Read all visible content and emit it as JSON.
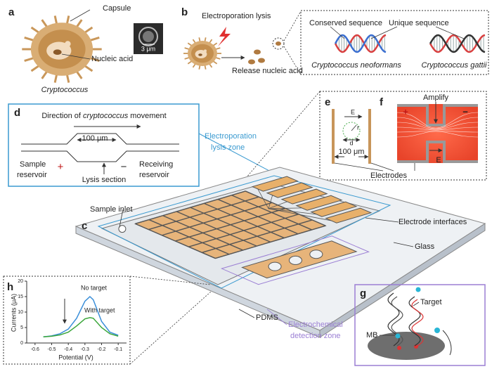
{
  "panels": {
    "a": {
      "label": "a",
      "capsule": "Capsule",
      "nucleic_acid": "Nucleic acid",
      "scale": "3 μm",
      "organism": "Cryptococcus"
    },
    "b": {
      "label": "b",
      "lysis": "Electroporation lysis",
      "release": "Release nucleic acid",
      "conserved": "Conserved sequence",
      "unique": "Unique sequence",
      "species_1": "Cryptococcus neoformans",
      "species_2": "Cryptococcus gattii"
    },
    "c": {
      "label": "c",
      "sample_inlet": "Sample inlet",
      "electrode_interfaces": "Electrode interfaces",
      "glass": "Glass",
      "pdms": "PDMS",
      "lysis_zone": [
        "Electroporation",
        "lysis zone"
      ],
      "detection_zone": [
        "Electrochemical",
        "detection zone"
      ]
    },
    "d": {
      "label": "d",
      "direction": [
        "Direction of ",
        "cryptococcus",
        " movement"
      ],
      "width": "100 μm",
      "plus": "+",
      "minus": "−",
      "sample": [
        "Sample",
        "reservoir"
      ],
      "receiving": [
        "Receiving",
        "reservoir"
      ],
      "lysis_section": "Lysis section"
    },
    "e": {
      "label": "e",
      "field": "E",
      "radius": "r",
      "diameter": "d",
      "width": "100 μm"
    },
    "f": {
      "label": "f",
      "amplify": "Amplify",
      "plus": "+",
      "minus": "−",
      "field": "E"
    },
    "electrodes": "Electrodes",
    "g": {
      "label": "g",
      "target": "Target",
      "mb": "MB"
    },
    "h": {
      "label": "h",
      "type": "line",
      "xlabel": "Potential (V)",
      "ylabel": "Currents (μA)",
      "x": [
        -0.55,
        -0.5,
        -0.45,
        -0.4,
        -0.35,
        -0.3,
        -0.27,
        -0.25,
        -0.2,
        -0.15,
        -0.1
      ],
      "series": [
        {
          "name": "No target",
          "color": "#3b8fd9",
          "values": [
            2,
            2.3,
            3,
            4.5,
            8,
            13.5,
            15,
            14,
            7,
            3.5,
            2.5
          ]
        },
        {
          "name": "With target",
          "color": "#3aa63a",
          "values": [
            2,
            2.2,
            2.6,
            3.5,
            5.5,
            7.8,
            8.2,
            8,
            5,
            3,
            2.2
          ]
        }
      ],
      "xlim": [
        -0.65,
        -0.05
      ],
      "ylim": [
        0,
        20
      ],
      "xticks": [
        -0.6,
        -0.5,
        -0.4,
        -0.3,
        -0.2,
        -0.1
      ],
      "yticks": [
        0,
        5,
        10,
        15,
        20
      ]
    }
  }
}
